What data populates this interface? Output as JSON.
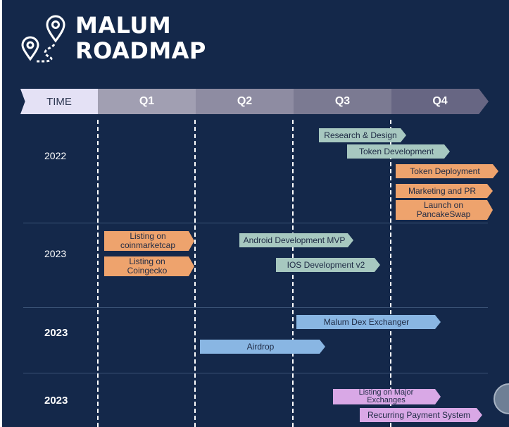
{
  "title": {
    "line1": "MALUM",
    "line2": "ROADMAP"
  },
  "logo_icon": "location-pins-route-icon",
  "header": {
    "time_label": "TIME",
    "quarters": [
      "Q1",
      "Q2",
      "Q3",
      "Q4"
    ]
  },
  "rows": [
    {
      "year": "2022",
      "bold": false,
      "tasks": [
        {
          "label": "Research & Design",
          "color": "teal"
        },
        {
          "label": "Token Development",
          "color": "teal"
        },
        {
          "label": "Token Deployment",
          "color": "orange"
        },
        {
          "label": "Marketing and PR",
          "color": "orange"
        },
        {
          "label": "Launch on PancakeSwap",
          "color": "orange"
        }
      ]
    },
    {
      "year": "2023",
      "bold": false,
      "tasks": [
        {
          "label": "Listing on coinmarketcap",
          "color": "orange"
        },
        {
          "label": "Listing on Coingecko",
          "color": "orange"
        },
        {
          "label": "Android Development MVP",
          "color": "teal"
        },
        {
          "label": "IOS Development v2",
          "color": "teal"
        }
      ]
    },
    {
      "year": "2023",
      "bold": true,
      "tasks": [
        {
          "label": "Malum Dex Exchanger",
          "color": "blue"
        },
        {
          "label": "Airdrop",
          "color": "blue"
        }
      ]
    },
    {
      "year": "2023",
      "bold": true,
      "tasks": [
        {
          "label": "Listing on Major Exchanges",
          "color": "purple"
        },
        {
          "label": "Recurring Payment System",
          "color": "purple"
        }
      ]
    }
  ],
  "colors": {
    "background": "#14284a",
    "teal": "#a7c8c0",
    "orange": "#eea36d",
    "blue": "#89b6e3",
    "purple": "#d9a8e6"
  }
}
